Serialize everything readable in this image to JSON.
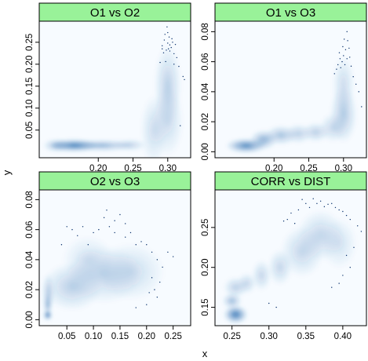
{
  "chart_data": {
    "type": "scatter",
    "xlabel": "x",
    "ylabel": "y",
    "strip_color": "#99f299",
    "density_color": "#2166ac",
    "point_color": "#08306b",
    "panels": [
      {
        "title": "O1 vs O2",
        "xlim": [
          0.115,
          0.333
        ],
        "ylim": [
          -0.013,
          0.298
        ],
        "xticks": [
          0.2,
          0.25,
          0.3
        ],
        "xtick_labels": [
          "0.20",
          "0.25",
          "0.30"
        ],
        "yticks": [
          0.05,
          0.1,
          0.15,
          0.2,
          0.25
        ],
        "ytick_labels": [
          "0.05",
          "0.10",
          "0.15",
          "0.20",
          "0.25"
        ],
        "yticks_side": "left",
        "xticks_side": "bottom",
        "blobs": [
          [
            0.165,
            0.015,
            0.022,
            0.009,
            0.95
          ],
          [
            0.205,
            0.015,
            0.028,
            0.008,
            0.55
          ],
          [
            0.245,
            0.016,
            0.015,
            0.008,
            0.35
          ],
          [
            0.14,
            0.015,
            0.012,
            0.009,
            0.5
          ],
          [
            0.28,
            0.05,
            0.012,
            0.05,
            0.25
          ],
          [
            0.3,
            0.15,
            0.012,
            0.06,
            0.35
          ],
          [
            0.3,
            0.07,
            0.014,
            0.05,
            0.25
          ]
        ],
        "points": [
          [
            0.292,
            0.242
          ],
          [
            0.295,
            0.255
          ],
          [
            0.298,
            0.232
          ],
          [
            0.3,
            0.248
          ],
          [
            0.302,
            0.262
          ],
          [
            0.305,
            0.238
          ],
          [
            0.307,
            0.25
          ],
          [
            0.309,
            0.224
          ],
          [
            0.296,
            0.268
          ],
          [
            0.3,
            0.272
          ],
          [
            0.303,
            0.23
          ],
          [
            0.311,
            0.245
          ],
          [
            0.294,
            0.226
          ],
          [
            0.301,
            0.235
          ],
          [
            0.306,
            0.258
          ],
          [
            0.313,
            0.215
          ],
          [
            0.316,
            0.195
          ],
          [
            0.322,
            0.172
          ],
          [
            0.324,
            0.165
          ],
          [
            0.318,
            0.06
          ],
          [
            0.289,
            0.204
          ],
          [
            0.297,
            0.206
          ],
          [
            0.309,
            0.2
          ],
          [
            0.299,
            0.285
          ],
          [
            0.303,
            0.244
          ],
          [
            0.292,
            0.235
          ]
        ]
      },
      {
        "title": "O1 vs O3",
        "xlim": [
          0.115,
          0.333
        ],
        "ylim": [
          -0.004,
          0.087
        ],
        "xticks": [
          0.2,
          0.25,
          0.3
        ],
        "xtick_labels": [
          "0.20",
          "0.25",
          "0.30"
        ],
        "yticks": [
          0.0,
          0.02,
          0.04,
          0.06,
          0.08
        ],
        "ytick_labels": [
          "0.00",
          "0.02",
          "0.04",
          "0.06",
          "0.08"
        ],
        "yticks_side": "left",
        "xticks_side": "bottom",
        "blobs": [
          [
            0.16,
            0.004,
            0.018,
            0.003,
            0.9
          ],
          [
            0.185,
            0.008,
            0.012,
            0.004,
            0.6
          ],
          [
            0.21,
            0.011,
            0.014,
            0.004,
            0.45
          ],
          [
            0.235,
            0.012,
            0.012,
            0.004,
            0.35
          ],
          [
            0.26,
            0.013,
            0.012,
            0.004,
            0.35
          ],
          [
            0.285,
            0.016,
            0.012,
            0.006,
            0.3
          ],
          [
            0.3,
            0.025,
            0.012,
            0.012,
            0.4
          ],
          [
            0.3,
            0.045,
            0.01,
            0.012,
            0.25
          ]
        ],
        "points": [
          [
            0.292,
            0.058
          ],
          [
            0.295,
            0.062
          ],
          [
            0.298,
            0.06
          ],
          [
            0.3,
            0.064
          ],
          [
            0.302,
            0.058
          ],
          [
            0.305,
            0.062
          ],
          [
            0.299,
            0.07
          ],
          [
            0.303,
            0.068
          ],
          [
            0.306,
            0.074
          ],
          [
            0.309,
            0.063
          ],
          [
            0.311,
            0.057
          ],
          [
            0.296,
            0.056
          ],
          [
            0.29,
            0.055
          ],
          [
            0.301,
            0.075
          ],
          [
            0.305,
            0.08
          ],
          [
            0.314,
            0.05
          ],
          [
            0.318,
            0.045
          ],
          [
            0.322,
            0.04
          ],
          [
            0.326,
            0.03
          ],
          [
            0.287,
            0.052
          ],
          [
            0.294,
            0.066
          ],
          [
            0.308,
            0.069
          ]
        ]
      },
      {
        "title": "O2 vs O3",
        "xlim": [
          -0.002,
          0.283
        ],
        "ylim": [
          -0.004,
          0.087
        ],
        "xticks": [
          0.05,
          0.1,
          0.15,
          0.2,
          0.25
        ],
        "xtick_labels": [
          "0.05",
          "0.10",
          "0.15",
          "0.20",
          "0.25"
        ],
        "yticks": [
          0.0,
          0.02,
          0.04,
          0.06,
          0.08
        ],
        "ytick_labels": [
          "0.00",
          "0.02",
          "0.04",
          "0.06",
          "0.08"
        ],
        "yticks_side": "left",
        "xticks_side": "bottom",
        "blobs": [
          [
            0.014,
            0.003,
            0.005,
            0.002,
            1.0
          ],
          [
            0.014,
            0.01,
            0.005,
            0.005,
            0.5
          ],
          [
            0.015,
            0.018,
            0.007,
            0.008,
            0.35
          ],
          [
            0.06,
            0.022,
            0.035,
            0.01,
            0.35
          ],
          [
            0.12,
            0.03,
            0.045,
            0.012,
            0.3
          ],
          [
            0.17,
            0.032,
            0.04,
            0.012,
            0.25
          ],
          [
            0.09,
            0.04,
            0.03,
            0.01,
            0.2
          ]
        ],
        "points": [
          [
            0.04,
            0.05
          ],
          [
            0.05,
            0.062
          ],
          [
            0.07,
            0.056
          ],
          [
            0.08,
            0.062
          ],
          [
            0.09,
            0.05
          ],
          [
            0.1,
            0.058
          ],
          [
            0.11,
            0.06
          ],
          [
            0.12,
            0.068
          ],
          [
            0.125,
            0.073
          ],
          [
            0.13,
            0.062
          ],
          [
            0.14,
            0.066
          ],
          [
            0.15,
            0.07
          ],
          [
            0.16,
            0.064
          ],
          [
            0.17,
            0.058
          ],
          [
            0.18,
            0.05
          ],
          [
            0.19,
            0.052
          ],
          [
            0.2,
            0.05
          ],
          [
            0.21,
            0.045
          ],
          [
            0.22,
            0.04
          ],
          [
            0.23,
            0.035
          ],
          [
            0.24,
            0.045
          ],
          [
            0.25,
            0.042
          ],
          [
            0.21,
            0.028
          ],
          [
            0.215,
            0.02
          ],
          [
            0.22,
            0.015
          ],
          [
            0.2,
            0.01
          ],
          [
            0.18,
            0.008
          ],
          [
            0.205,
            0.018
          ],
          [
            0.225,
            0.025
          ],
          [
            0.06,
            0.06
          ],
          [
            0.14,
            0.058
          ],
          [
            0.16,
            0.055
          ]
        ]
      },
      {
        "title": "CORR vs DIST",
        "xlim": [
          0.227,
          0.432
        ],
        "ylim": [
          0.127,
          0.298
        ],
        "xticks": [
          0.25,
          0.3,
          0.35,
          0.4
        ],
        "xtick_labels": [
          "0.25",
          "0.30",
          "0.35",
          "0.40"
        ],
        "yticks": [
          0.15,
          0.2,
          0.25
        ],
        "ytick_labels": [
          "0.15",
          "0.20",
          "0.25"
        ],
        "yticks_side": "left",
        "xticks_side": "bottom",
        "blobs": [
          [
            0.255,
            0.141,
            0.01,
            0.007,
            1.0
          ],
          [
            0.25,
            0.158,
            0.008,
            0.006,
            0.5
          ],
          [
            0.255,
            0.175,
            0.01,
            0.008,
            0.35
          ],
          [
            0.27,
            0.18,
            0.008,
            0.008,
            0.3
          ],
          [
            0.29,
            0.19,
            0.008,
            0.012,
            0.3
          ],
          [
            0.315,
            0.2,
            0.01,
            0.014,
            0.3
          ],
          [
            0.345,
            0.22,
            0.018,
            0.02,
            0.3
          ],
          [
            0.37,
            0.24,
            0.02,
            0.02,
            0.3
          ],
          [
            0.395,
            0.23,
            0.015,
            0.02,
            0.2
          ]
        ],
        "points": [
          [
            0.32,
            0.258
          ],
          [
            0.33,
            0.268
          ],
          [
            0.34,
            0.272
          ],
          [
            0.345,
            0.285
          ],
          [
            0.35,
            0.28
          ],
          [
            0.355,
            0.275
          ],
          [
            0.36,
            0.286
          ],
          [
            0.365,
            0.28
          ],
          [
            0.37,
            0.283
          ],
          [
            0.375,
            0.276
          ],
          [
            0.38,
            0.279
          ],
          [
            0.385,
            0.28
          ],
          [
            0.39,
            0.275
          ],
          [
            0.395,
            0.272
          ],
          [
            0.4,
            0.27
          ],
          [
            0.405,
            0.265
          ],
          [
            0.41,
            0.26
          ],
          [
            0.42,
            0.252
          ],
          [
            0.425,
            0.245
          ],
          [
            0.41,
            0.2
          ],
          [
            0.4,
            0.19
          ],
          [
            0.395,
            0.18
          ],
          [
            0.385,
            0.175
          ],
          [
            0.3,
            0.155
          ],
          [
            0.31,
            0.15
          ],
          [
            0.325,
            0.26
          ],
          [
            0.335,
            0.255
          ],
          [
            0.415,
            0.225
          ],
          [
            0.405,
            0.215
          ]
        ]
      }
    ]
  }
}
